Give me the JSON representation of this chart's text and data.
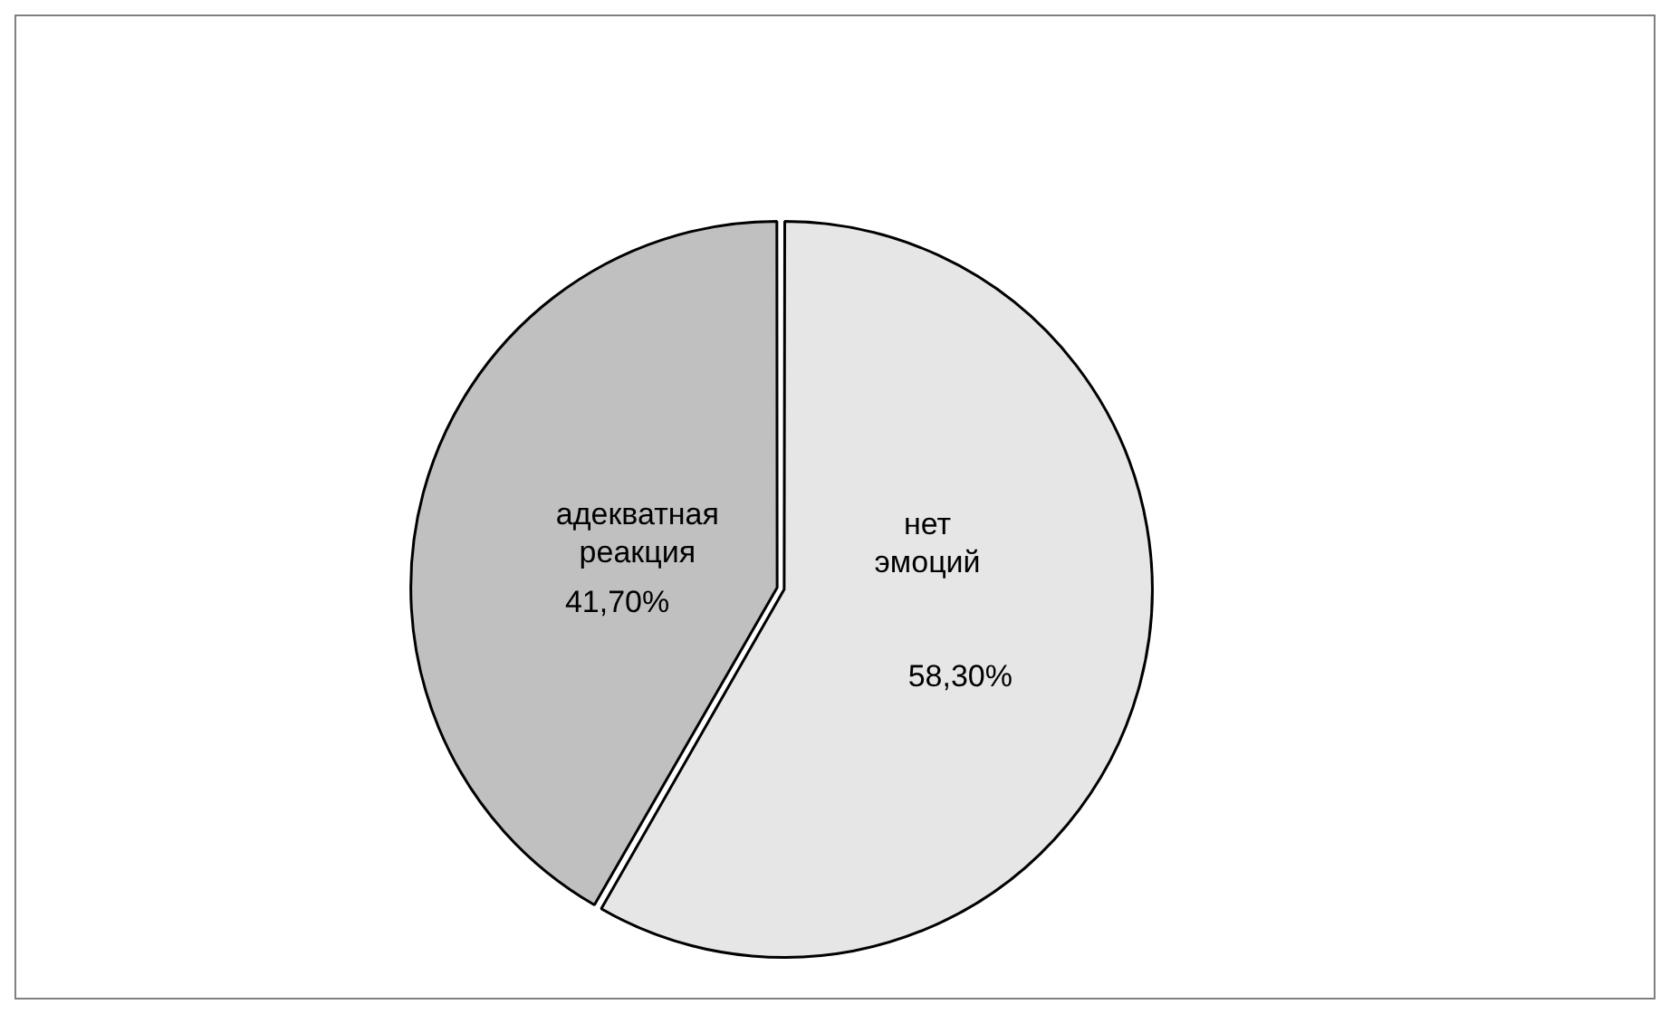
{
  "chart_data": {
    "type": "pie",
    "categories": [
      "нет эмоций",
      "адекватная реакция"
    ],
    "values": [
      58.3,
      41.7
    ],
    "colors": [
      "#e6e6e6",
      "#c0c0c0"
    ],
    "value_labels": [
      "58,30%",
      "41,70%"
    ],
    "legend": false
  }
}
